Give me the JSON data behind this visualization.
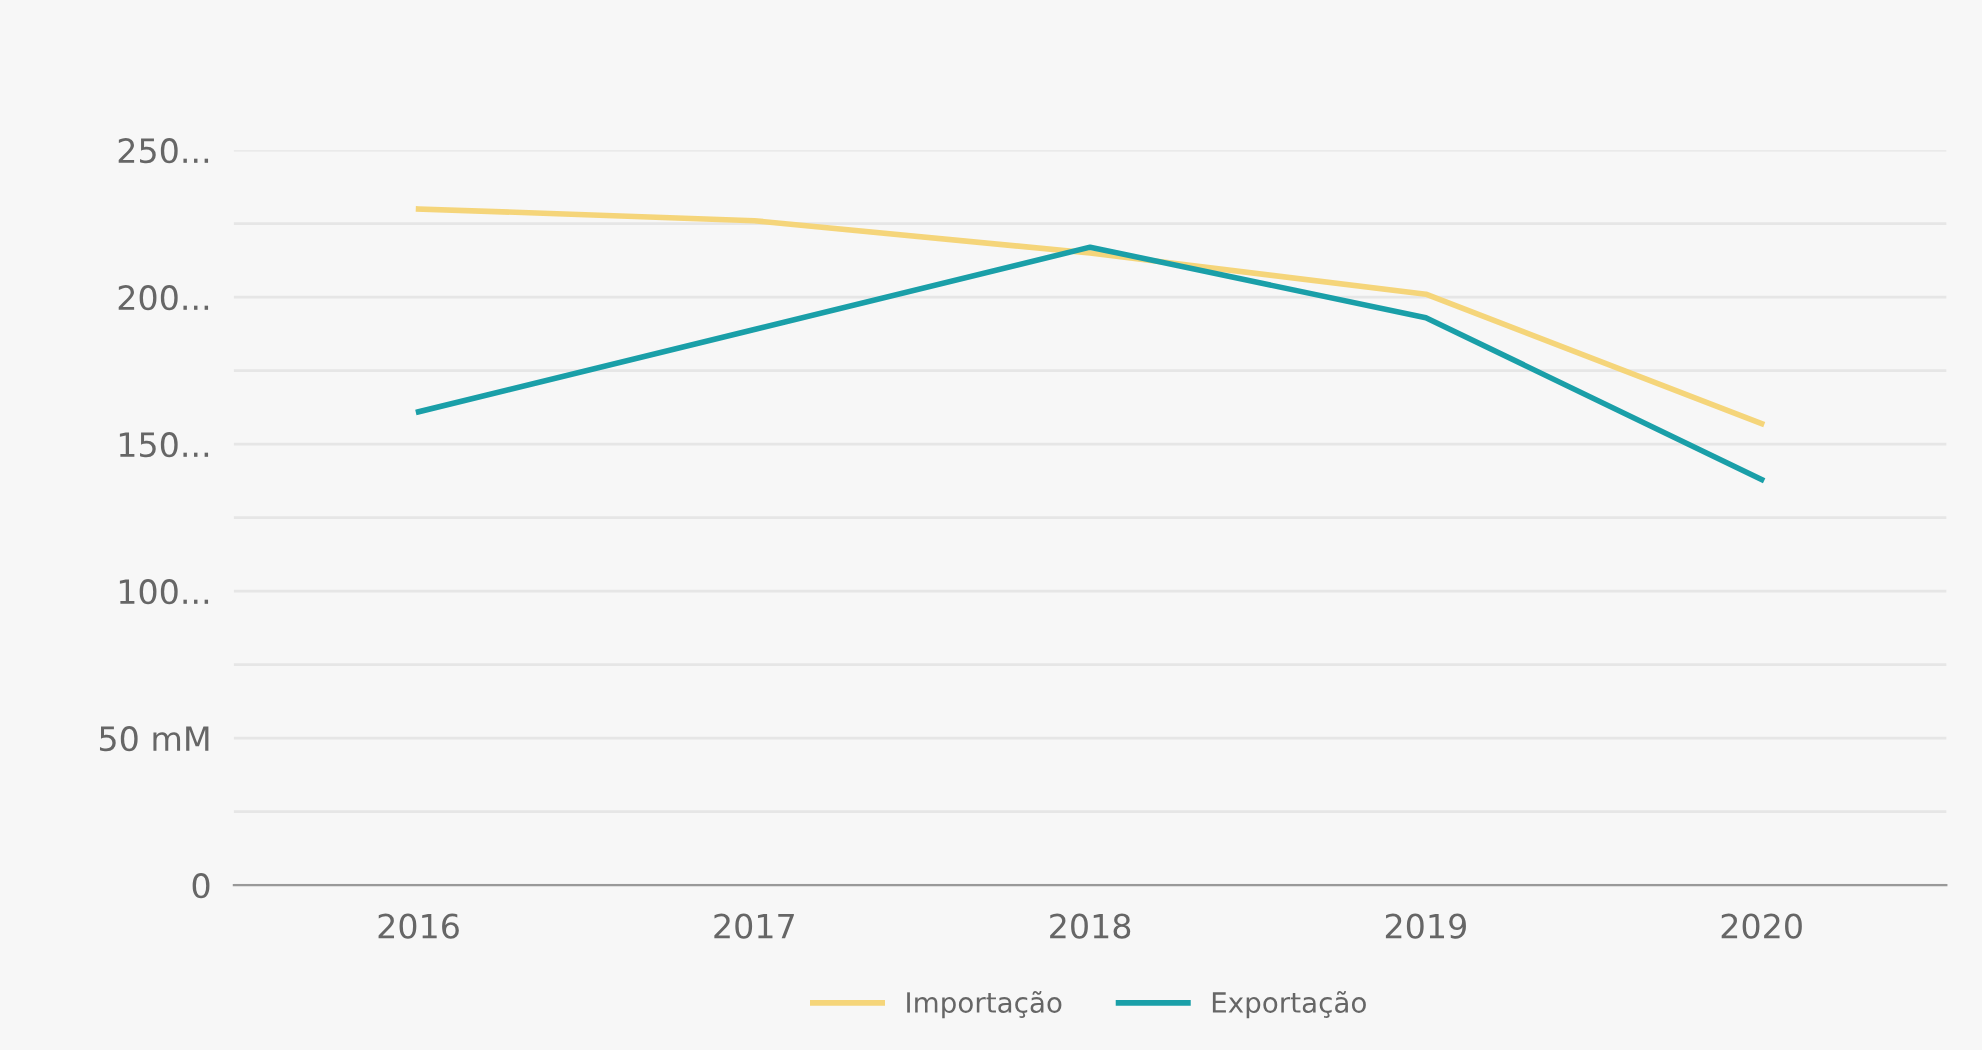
{
  "chart_data": {
    "type": "line",
    "categories": [
      "2016",
      "2017",
      "2018",
      "2019",
      "2020"
    ],
    "series": [
      {
        "name": "Importação",
        "color": "#f5d57a",
        "values": [
          230,
          226,
          215,
          201,
          157
        ]
      },
      {
        "name": "Exportação",
        "color": "#1a9fa8",
        "values": [
          161,
          189,
          217,
          193,
          138
        ]
      }
    ],
    "ylim": [
      0,
      250
    ],
    "yticks": [
      0,
      {
        "value": 25,
        "label": null
      },
      {
        "value": 50,
        "label": "50 mM"
      },
      {
        "value": 75,
        "label": null
      },
      {
        "value": 100,
        "label": "100..."
      },
      {
        "value": 125,
        "label": null
      },
      {
        "value": 150,
        "label": "150..."
      },
      {
        "value": 175,
        "label": null
      },
      {
        "value": 200,
        "label": "200..."
      },
      {
        "value": 225,
        "label": null
      },
      {
        "value": 250,
        "label": "250..."
      }
    ],
    "grid": "y",
    "legend": "bottom",
    "marker": "none",
    "line_style": "solid"
  }
}
